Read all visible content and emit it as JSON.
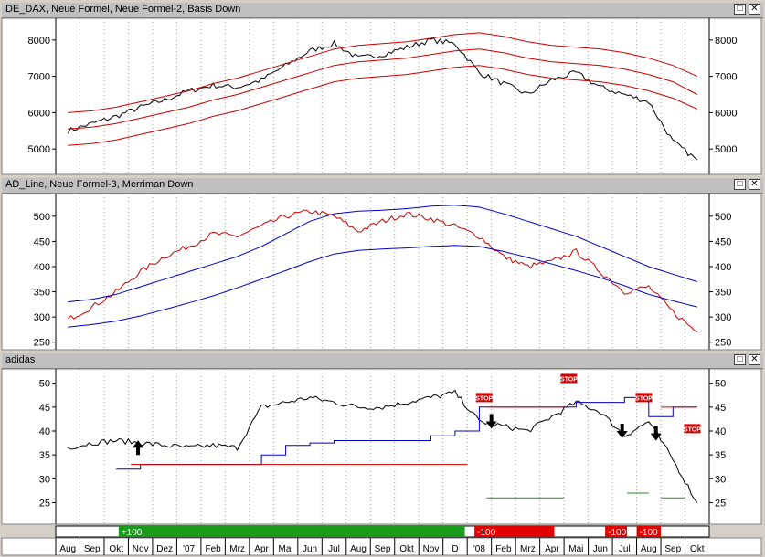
{
  "panels": [
    {
      "title": "DE_DAX, Neue Formel, Neue Formel-2, Basis Down",
      "yticks": [
        5000,
        6000,
        7000,
        8000
      ],
      "ylim": [
        4300,
        8600
      ]
    },
    {
      "title": "AD_Line, Neue Formel-3, Merriman Down",
      "yticks": [
        250,
        300,
        350,
        400,
        450,
        500
      ],
      "ylim": [
        235,
        545
      ]
    },
    {
      "title": "adidas",
      "yticks": [
        25,
        30,
        35,
        40,
        45,
        50
      ],
      "ylim": [
        20.5,
        53
      ],
      "stop_label": "STOP"
    }
  ],
  "signal_bar": [
    {
      "label": "+100",
      "color": "#1a9a1a"
    },
    {
      "label": "-100",
      "color": "#e00000"
    },
    {
      "label": "-100",
      "color": "#e00000"
    },
    {
      "label": "-100",
      "color": "#e00000"
    }
  ],
  "months": [
    "Aug",
    "Sep",
    "Okt",
    "Nov",
    "Dez",
    "'07",
    "Feb",
    "Mrz",
    "Apr",
    "Mai",
    "Jun",
    "Jul",
    "Aug",
    "Sep",
    "Okt",
    "Nov",
    "D",
    "'08",
    "Feb",
    "Mrz",
    "Apr",
    "Mai",
    "Jun",
    "Jul",
    "Aug",
    "Sep",
    "Okt"
  ],
  "colors": {
    "price": "#000000",
    "red": "#cc0000",
    "blue": "#0000cc",
    "green": "#2a8a2a",
    "grid": "#a0a0a0"
  },
  "chart_data": [
    {
      "type": "line",
      "title": "DE_DAX, Neue Formel, Neue Formel-2, Basis Down",
      "x": [
        "Aug",
        "Sep",
        "Okt",
        "Nov",
        "Dez",
        "'07",
        "Feb",
        "Mrz",
        "Apr",
        "Mai",
        "Jun",
        "Jul",
        "Aug",
        "Sep",
        "Okt",
        "Nov",
        "D",
        "'08",
        "Feb",
        "Mrz",
        "Apr",
        "Mai",
        "Jun",
        "Jul",
        "Aug",
        "Sep",
        "Okt"
      ],
      "ylim": [
        4300,
        8600
      ],
      "series": [
        {
          "values": [
            5500,
            5700,
            5900,
            6150,
            6350,
            6600,
            6750,
            6700,
            6900,
            7300,
            7700,
            7900,
            7500,
            7600,
            7800,
            8000,
            7900,
            7100,
            6800,
            6500,
            6900,
            7100,
            6700,
            6500,
            6300,
            5200,
            4700
          ]
        },
        {
          "values": [
            6000,
            6050,
            6150,
            6300,
            6450,
            6600,
            6800,
            6950,
            7150,
            7350,
            7550,
            7750,
            7850,
            7900,
            7950,
            8050,
            8150,
            8200,
            8100,
            7950,
            7850,
            7800,
            7750,
            7650,
            7500,
            7300,
            7000
          ]
        },
        {
          "values": [
            5550,
            5600,
            5700,
            5850,
            6000,
            6150,
            6350,
            6500,
            6700,
            6900,
            7100,
            7300,
            7400,
            7450,
            7500,
            7600,
            7700,
            7750,
            7650,
            7500,
            7400,
            7350,
            7300,
            7200,
            7050,
            6850,
            6500
          ]
        },
        {
          "values": [
            5100,
            5150,
            5250,
            5400,
            5550,
            5700,
            5900,
            6050,
            6250,
            6450,
            6650,
            6850,
            6950,
            7000,
            7050,
            7150,
            7250,
            7300,
            7200,
            7050,
            6950,
            6900,
            6850,
            6750,
            6600,
            6400,
            6100
          ]
        }
      ]
    },
    {
      "type": "line",
      "title": "AD_Line, Neue Formel-3, Merriman Down",
      "x": [
        "Aug",
        "Sep",
        "Okt",
        "Nov",
        "Dez",
        "'07",
        "Feb",
        "Mrz",
        "Apr",
        "Mai",
        "Jun",
        "Jul",
        "Aug",
        "Sep",
        "Okt",
        "Nov",
        "D",
        "'08",
        "Feb",
        "Mrz",
        "Apr",
        "Mai",
        "Jun",
        "Jul",
        "Aug",
        "Sep",
        "Okt"
      ],
      "ylim": [
        235,
        545
      ],
      "series": [
        {
          "values": [
            295,
            320,
            350,
            390,
            420,
            440,
            465,
            460,
            480,
            500,
            510,
            500,
            470,
            490,
            505,
            495,
            480,
            460,
            420,
            400,
            410,
            430,
            390,
            350,
            360,
            310,
            270
          ]
        },
        {
          "values": [
            330,
            335,
            345,
            360,
            375,
            390,
            405,
            420,
            440,
            465,
            490,
            505,
            510,
            512,
            515,
            520,
            522,
            518,
            505,
            490,
            475,
            460,
            440,
            420,
            400,
            385,
            370
          ]
        },
        {
          "values": [
            280,
            285,
            292,
            302,
            315,
            328,
            342,
            358,
            375,
            392,
            410,
            425,
            432,
            435,
            437,
            440,
            442,
            440,
            430,
            418,
            405,
            392,
            378,
            362,
            345,
            332,
            320
          ]
        }
      ]
    },
    {
      "type": "line",
      "title": "adidas",
      "x": [
        "Aug",
        "Sep",
        "Okt",
        "Nov",
        "Dez",
        "'07",
        "Feb",
        "Mrz",
        "Apr",
        "Mai",
        "Jun",
        "Jul",
        "Aug",
        "Sep",
        "Okt",
        "Nov",
        "D",
        "'08",
        "Feb",
        "Mrz",
        "Apr",
        "Mai",
        "Jun",
        "Jul",
        "Aug",
        "Sep",
        "Okt"
      ],
      "ylim": [
        20.5,
        53
      ],
      "series": [
        {
          "values": [
            36.5,
            37.5,
            38,
            37.5,
            37,
            36.5,
            37,
            36.5,
            45,
            46,
            47,
            46,
            45,
            45,
            46,
            47,
            48,
            42,
            41,
            40,
            43,
            46,
            44,
            39,
            42,
            34,
            25
          ]
        },
        {
          "values": [
            null,
            null,
            32,
            33,
            33,
            33,
            33,
            33,
            35,
            37,
            37.5,
            38,
            38,
            38,
            38,
            39,
            40,
            45,
            45,
            45,
            45,
            46,
            46,
            47,
            43,
            45,
            45
          ]
        }
      ]
    }
  ]
}
